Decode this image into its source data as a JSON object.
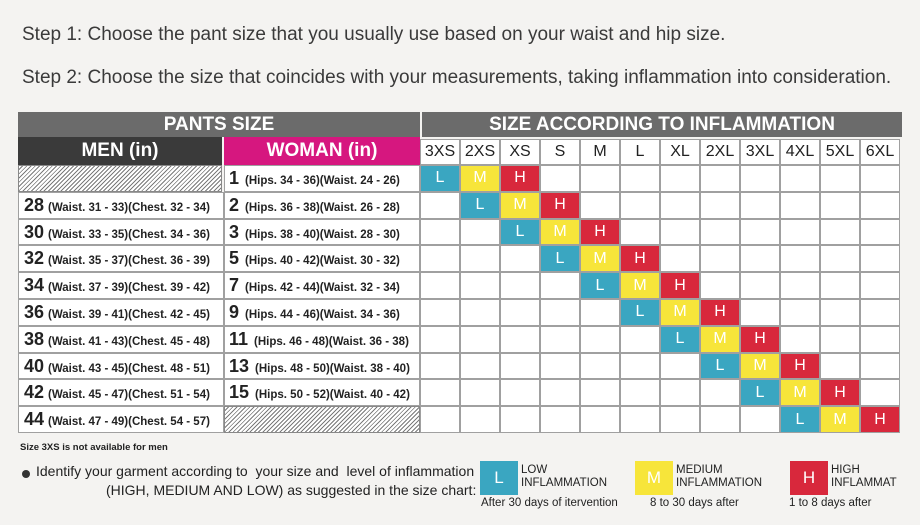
{
  "steps": {
    "step1": "Step 1: Choose the pant size that you usually use based on your waist and hip size.",
    "step2": "Step 2: Choose the size that coincides with your measurements, taking inflammation into consideration."
  },
  "headers": {
    "pants_size": "PANTS SIZE",
    "size_inflammation": "SIZE ACCORDING TO INFLAMMATION",
    "men": "MEN (in)",
    "woman": "WOMAN (in)"
  },
  "sizes": [
    "3XS",
    "2XS",
    "XS",
    "S",
    "M",
    "L",
    "XL",
    "2XL",
    "3XL",
    "4XL",
    "5XL",
    "6XL"
  ],
  "colors": {
    "low": "#3aa6c1",
    "medium": "#f7e53a",
    "high": "#d8283c",
    "magenta": "#d6177f"
  },
  "rows": [
    {
      "men_size": "",
      "men_detail": "",
      "woman_size": "1",
      "woman_detail": "(Hips. 34 - 36)(Waist. 24 - 26)"
    },
    {
      "men_size": "28",
      "men_detail": "(Waist. 31 - 33)(Chest. 32 - 34)",
      "woman_size": "2",
      "woman_detail": "(Hips. 36 - 38)(Waist. 26 - 28)"
    },
    {
      "men_size": "30",
      "men_detail": "(Waist. 33 - 35)(Chest. 34 - 36)",
      "woman_size": "3",
      "woman_detail": "(Hips. 38 - 40)(Waist. 28 - 30)"
    },
    {
      "men_size": "32",
      "men_detail": "(Waist. 35 - 37)(Chest. 36 - 39)",
      "woman_size": "5",
      "woman_detail": "(Hips. 40 - 42)(Waist. 30 - 32)"
    },
    {
      "men_size": "34",
      "men_detail": "(Waist. 37 - 39)(Chest. 39 - 42)",
      "woman_size": "7",
      "woman_detail": "(Hips. 42 - 44)(Waist. 32 - 34)"
    },
    {
      "men_size": "36",
      "men_detail": "(Waist. 39 - 41)(Chest. 42 - 45)",
      "woman_size": "9",
      "woman_detail": "(Hips. 44 - 46)(Waist. 34 - 36)"
    },
    {
      "men_size": "38",
      "men_detail": "(Waist. 41 - 43)(Chest. 45 - 48)",
      "woman_size": "11",
      "woman_detail": "(Hips. 46 - 48)(Waist. 36 - 38)"
    },
    {
      "men_size": "40",
      "men_detail": "(Waist. 43 - 45)(Chest. 48 - 51)",
      "woman_size": "13",
      "woman_detail": "(Hips. 48 - 50)(Waist. 38 - 40)"
    },
    {
      "men_size": "42",
      "men_detail": "(Waist. 45 - 47)(Chest. 51 - 54)",
      "woman_size": "15",
      "woman_detail": "(Hips. 50 - 52)(Waist. 40 - 42)"
    },
    {
      "men_size": "44",
      "men_detail": "(Waist. 47 - 49)(Chest. 54 - 57)",
      "woman_size": "",
      "woman_detail": ""
    }
  ],
  "badge_letters": [
    "L",
    "M",
    "H"
  ],
  "footnote": "Size 3XS is not available for men",
  "bullet": {
    "line1": "Identify your garment according to  your size and  level of inflammation",
    "line2": "(HIGH, MEDIUM AND LOW) as suggested in the size chart:"
  },
  "legend": [
    {
      "letter": "L",
      "label1": "LOW",
      "label2": "INFLAMMATION",
      "sub": "After 30 days of itervention"
    },
    {
      "letter": "M",
      "label1": "MEDIUM",
      "label2": "INFLAMMATION",
      "sub": "8 to 30 days after"
    },
    {
      "letter": "H",
      "label1": "HIGH",
      "label2": "INFLAMMAT",
      "sub": "1 to 8 days after"
    }
  ]
}
